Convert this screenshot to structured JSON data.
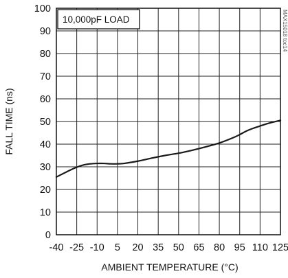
{
  "chart_data": {
    "type": "line",
    "title": "",
    "xlabel": "AMBIENT TEMPERATURE (°C)",
    "ylabel": "FALL TIME (ns)",
    "xlim": [
      -40,
      125
    ],
    "ylim": [
      0,
      100
    ],
    "xticks": [
      -40,
      -25,
      -10,
      5,
      20,
      35,
      50,
      65,
      80,
      95,
      110,
      125
    ],
    "yticks": [
      0,
      10,
      20,
      30,
      40,
      50,
      60,
      70,
      80,
      90,
      100
    ],
    "grid": true,
    "legend": "none",
    "annotation": "10,000pF LOAD",
    "side_id": "MAX15018 toc14",
    "series": [
      {
        "x": [
          -40,
          -30,
          -25,
          -20,
          -15,
          -10,
          -5,
          0,
          5,
          10,
          20,
          30,
          40,
          50,
          60,
          70,
          80,
          90,
          95,
          100,
          105,
          110,
          115,
          120,
          125
        ],
        "y": [
          25.5,
          28.5,
          29.8,
          30.8,
          31.3,
          31.5,
          31.5,
          31.3,
          31.3,
          31.5,
          32.5,
          33.8,
          35.0,
          36.0,
          37.3,
          38.8,
          40.5,
          42.8,
          44.2,
          45.8,
          47.0,
          48.0,
          49.0,
          49.8,
          50.5
        ],
        "color": "#1a1a1a"
      }
    ]
  }
}
